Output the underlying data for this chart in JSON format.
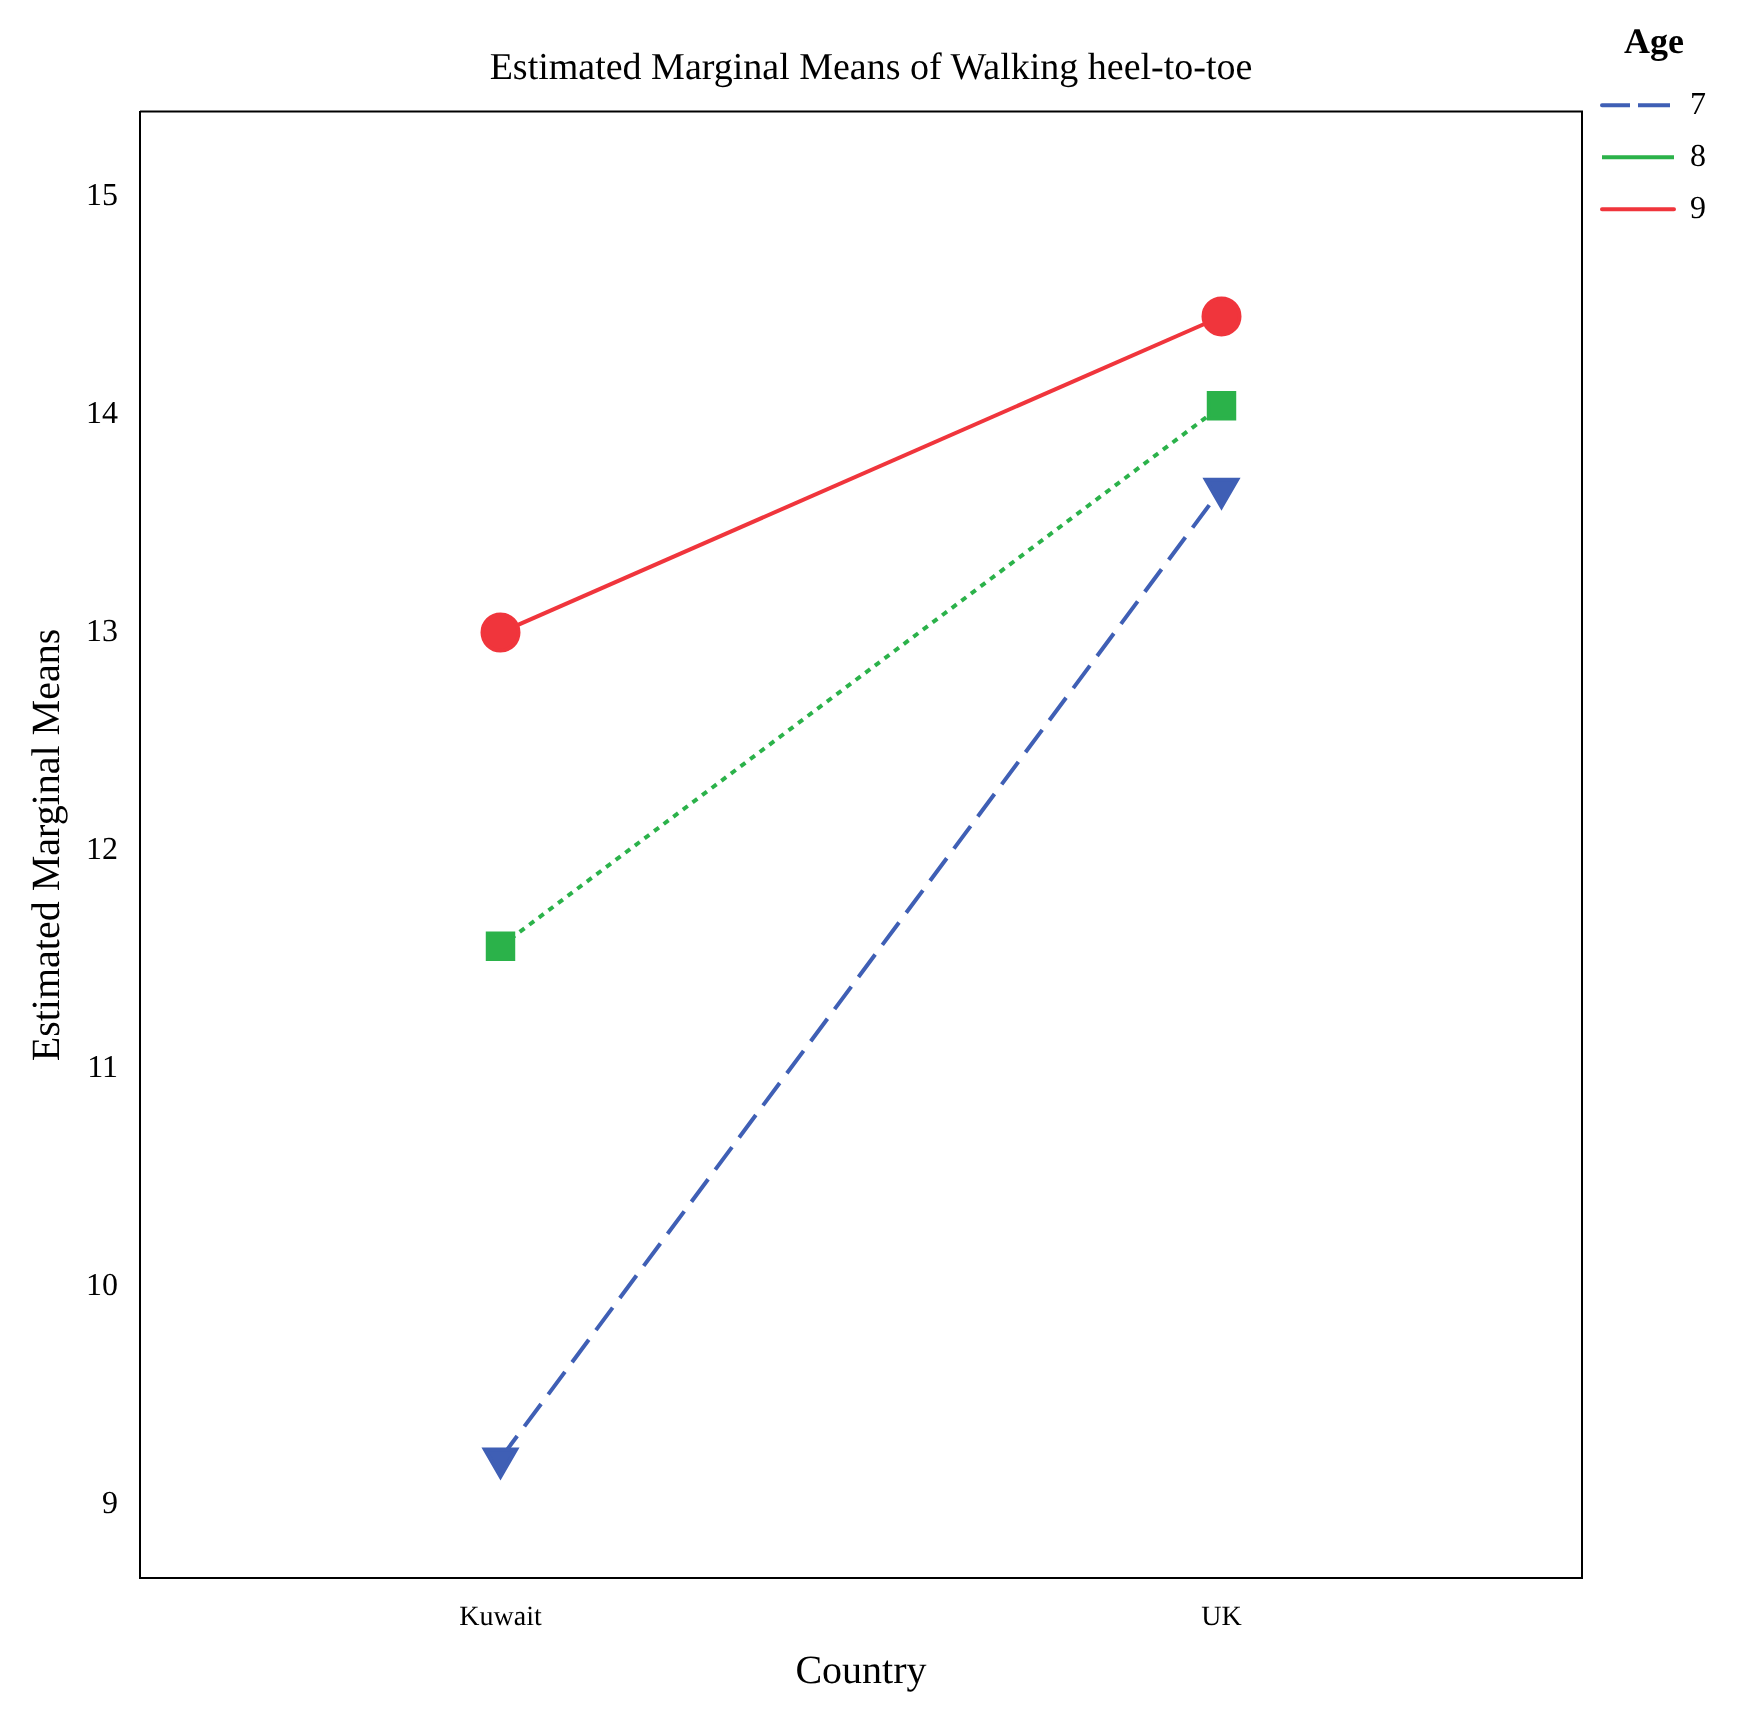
{
  "chart_data": {
    "type": "line",
    "title": "Estimated Marginal Means of Walking heel-to-toe",
    "xlabel": "Country",
    "ylabel": "Estimated Marginal Means",
    "legend_title": "Age",
    "legend": "right",
    "grid": false,
    "categories": [
      "Kuwait",
      "UK"
    ],
    "series": [
      {
        "name": "7",
        "color": "#3f5fb5",
        "values": [
          9.21,
          13.66
        ],
        "marker": "triangle",
        "line_style": "dashed"
      },
      {
        "name": "8",
        "color": "#2bb24a",
        "values": [
          11.56,
          14.04
        ],
        "marker": "square",
        "line_style": "dotted"
      },
      {
        "name": "9",
        "color": "#f0353c",
        "values": [
          13.0,
          14.45
        ],
        "marker": "circle",
        "line_style": "solid"
      }
    ],
    "ylim": [
      8.66,
      15.39
    ],
    "yticks": [
      9,
      10,
      11,
      12,
      13,
      14,
      15
    ]
  }
}
